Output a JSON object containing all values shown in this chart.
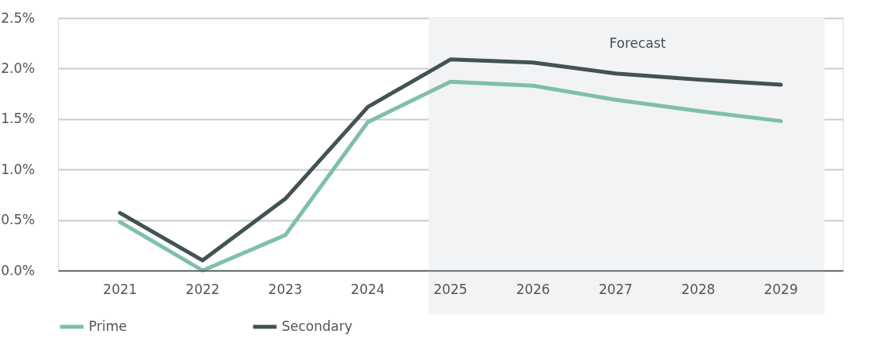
{
  "chart_data": {
    "type": "line",
    "categories": [
      "2021",
      "2022",
      "2023",
      "2024",
      "2025",
      "2026",
      "2027",
      "2028",
      "2029"
    ],
    "series": [
      {
        "name": "Prime",
        "color": "#7fbfab",
        "values": [
          0.48,
          0.0,
          0.35,
          1.47,
          1.87,
          1.83,
          1.69,
          1.58,
          1.48
        ]
      },
      {
        "name": "Secondary",
        "color": "#435254",
        "values": [
          0.57,
          0.1,
          0.71,
          1.62,
          2.09,
          2.06,
          1.95,
          1.89,
          1.84
        ]
      }
    ],
    "ylim": [
      0,
      2.5
    ],
    "yticks": [
      {
        "value": 0,
        "label": "0.0%"
      },
      {
        "value": 0.5,
        "label": "0.5%"
      },
      {
        "value": 1,
        "label": "1.0%"
      },
      {
        "value": 1.5,
        "label": "1.5%"
      },
      {
        "value": 2,
        "label": "2.0%"
      },
      {
        "value": 2.5,
        "label": "2.5%"
      }
    ],
    "bands": [
      {
        "axis": "x",
        "from": "2025",
        "to": "2029",
        "label": "Forecast",
        "color": "#f2f3f5"
      }
    ],
    "grid": "y",
    "legend": "bottom",
    "marker": "none",
    "line_style": "solid"
  }
}
